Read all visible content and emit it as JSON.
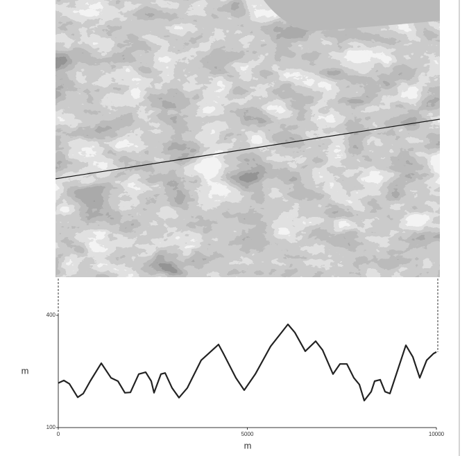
{
  "chart_data": {
    "type": "line",
    "x": [
      0,
      147,
      294,
      514,
      661,
      844,
      1138,
      1394,
      1578,
      1761,
      1908,
      2128,
      2312,
      2459,
      2532,
      2716,
      2826,
      3009,
      3193,
      3413,
      3780,
      4239,
      4367,
      4697,
      4917,
      5211,
      5615,
      6073,
      6257,
      6532,
      6807,
      6991,
      7266,
      7450,
      7633,
      7817,
      7963,
      8092,
      8275,
      8367,
      8514,
      8642,
      8771,
      9193,
      9376,
      9560,
      9743,
      9927,
      10000
    ],
    "values": [
      219,
      226,
      217,
      181,
      191,
      224,
      272,
      233,
      224,
      193,
      194,
      243,
      248,
      224,
      193,
      243,
      246,
      206,
      180,
      206,
      280,
      322,
      298,
      233,
      200,
      243,
      317,
      376,
      354,
      304,
      331,
      307,
      243,
      270,
      270,
      233,
      215,
      172,
      196,
      224,
      228,
      196,
      191,
      320,
      289,
      233,
      280,
      298,
      302
    ],
    "color": "#222222",
    "xlim": [
      0,
      10000
    ],
    "ylim": [
      100,
      400
    ],
    "xticks": [
      0,
      5000,
      10000
    ],
    "yticks": [
      100,
      400
    ],
    "xlabel": "m",
    "ylabel": "m"
  }
}
